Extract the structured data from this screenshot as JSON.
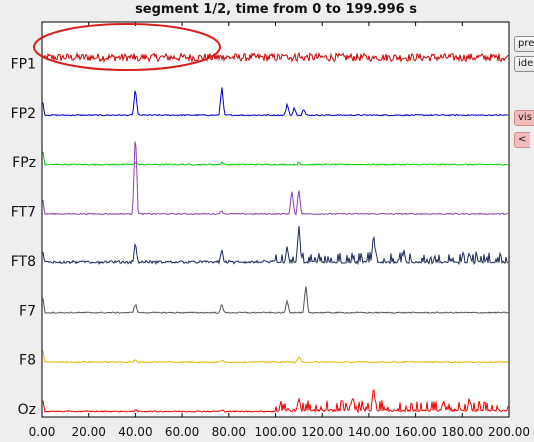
{
  "title": "segment 1/2, time from 0 to 199.996 s",
  "side_buttons": {
    "prep": "prep",
    "iden": "iden",
    "vis": "vis",
    "back": "<"
  },
  "chart_data": {
    "type": "line",
    "title": "segment 1/2, time from 0 to 199.996 s",
    "xlabel": "",
    "ylabel": "",
    "xlim": [
      0,
      200
    ],
    "x_ticks": [
      "0.00",
      "20.00",
      "40.00",
      "60.00",
      "80.00",
      "100.00",
      "120.00",
      "140.00",
      "160.00",
      "180.00",
      "200.00"
    ],
    "grid": false,
    "series": [
      {
        "name": "FP1",
        "color": "#cc0000",
        "peaks": [
          [
            0,
            14
          ],
          [
            40,
            6
          ],
          [
            77,
            4
          ],
          [
            105,
            12
          ],
          [
            110,
            14
          ],
          [
            142,
            10
          ]
        ]
      },
      {
        "name": "FP2",
        "color": "#0000cc",
        "peaks": [
          [
            0,
            22
          ],
          [
            40,
            28
          ],
          [
            77,
            30
          ],
          [
            105,
            12
          ],
          [
            108,
            8
          ],
          [
            112,
            8
          ]
        ]
      },
      {
        "name": "FPz",
        "color": "#00cc00",
        "peaks": [
          [
            0,
            22
          ],
          [
            40,
            3
          ],
          [
            77,
            3
          ],
          [
            110,
            3
          ]
        ]
      },
      {
        "name": "FT7",
        "color": "#8844aa",
        "peaks": [
          [
            0,
            22
          ],
          [
            40,
            86
          ],
          [
            77,
            4
          ],
          [
            107,
            24
          ],
          [
            110,
            26
          ]
        ]
      },
      {
        "name": "FT8",
        "color": "#1a2a5a",
        "peaks": [
          [
            0,
            18
          ],
          [
            40,
            22
          ],
          [
            77,
            14
          ],
          [
            105,
            18
          ],
          [
            110,
            40
          ],
          [
            142,
            30
          ],
          [
            155,
            14
          ],
          [
            183,
            12
          ]
        ]
      },
      {
        "name": "F7",
        "color": "#555555",
        "peaks": [
          [
            0,
            24
          ],
          [
            40,
            10
          ],
          [
            77,
            10
          ],
          [
            105,
            14
          ],
          [
            113,
            28
          ]
        ]
      },
      {
        "name": "F8",
        "color": "#e6b800",
        "peaks": [
          [
            0,
            20
          ],
          [
            40,
            3
          ],
          [
            77,
            3
          ],
          [
            110,
            6
          ]
        ]
      },
      {
        "name": "Oz",
        "color": "#ee0000",
        "peaks": [
          [
            0,
            18
          ],
          [
            40,
            2
          ],
          [
            77,
            2
          ],
          [
            110,
            14
          ],
          [
            133,
            16
          ],
          [
            142,
            26
          ],
          [
            172,
            12
          ],
          [
            183,
            14
          ]
        ]
      }
    ]
  },
  "annotation": {
    "shape": "ellipse",
    "color": "#d62020"
  }
}
